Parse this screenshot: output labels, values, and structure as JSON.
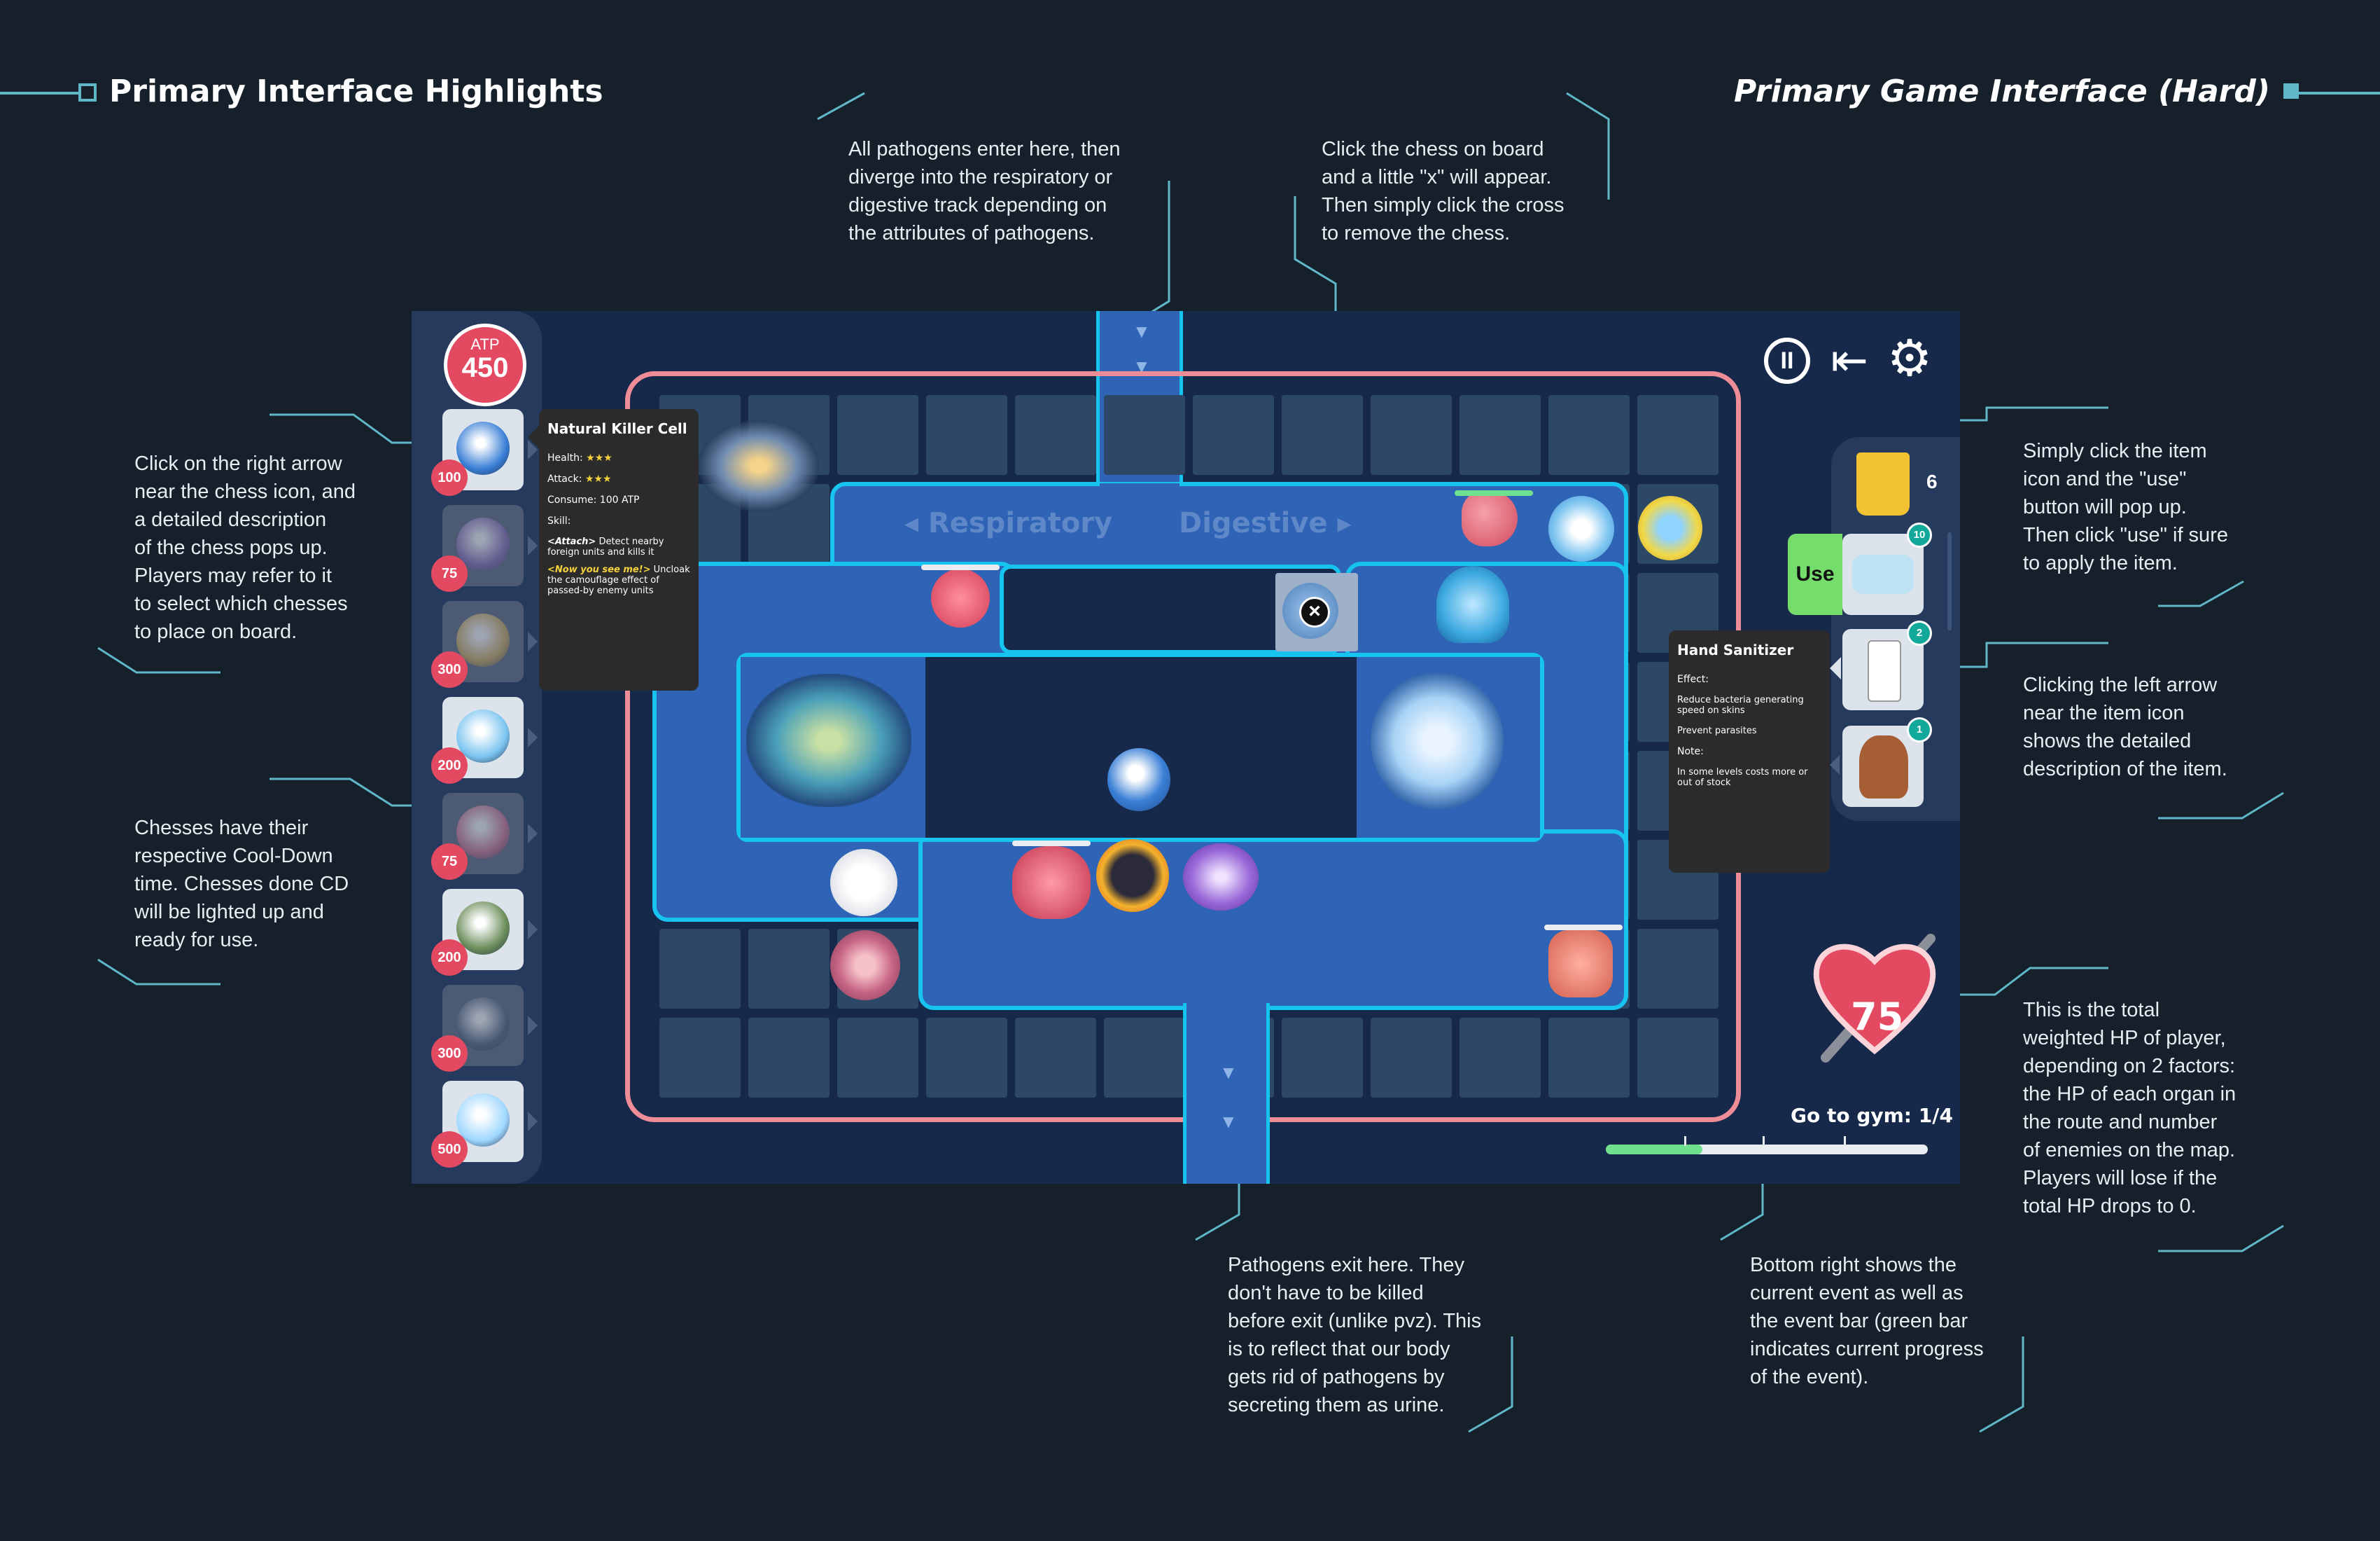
{
  "header": {
    "left_title": "Primary Interface Highlights",
    "right_title": "Primary Game Interface (Hard)"
  },
  "notes": {
    "entry": [
      "All pathogens enter here, then",
      "diverge into the respiratory or",
      "digestive track depending on",
      "the attributes of pathogens."
    ],
    "remove": [
      "Click the chess on board",
      "and a little \"x\" will appear.",
      "Then simply click the cross",
      "to remove the chess."
    ],
    "chess_desc": [
      "Click on the right arrow",
      "near the chess icon, and",
      "a detailed description",
      "of the chess pops up.",
      "Players may refer to it",
      "to select which chesses",
      "to place on board."
    ],
    "cooldown": [
      "Chesses have their",
      "respective Cool-Down",
      "time. Chesses done CD",
      "will be lighted up and",
      "ready for use."
    ],
    "use_item": [
      "Simply click the item",
      "icon and the \"use\"",
      "button will pop up.",
      "Then click \"use\" if sure",
      "to apply the item."
    ],
    "item_desc": [
      "Clicking the left arrow",
      "near the item icon",
      "shows the detailed",
      "description of the item."
    ],
    "hp": [
      "This is the total",
      "weighted HP of player,",
      "depending on 2 factors:",
      "the HP of each organ in",
      "the route and number",
      "of enemies on the map.",
      "Players will lose if the",
      "total HP drops to 0."
    ],
    "exit": [
      "Pathogens exit here. They",
      "don't have to be killed",
      "before exit (unlike pvz). This",
      "is to reflect that our body",
      "gets rid of pathogens by",
      "secreting them as urine."
    ],
    "event": [
      "Bottom right shows the",
      "current event as well as",
      "the event bar (green bar",
      "indicates current progress",
      "of the event)."
    ]
  },
  "game": {
    "atp": {
      "label": "ATP",
      "value": "450"
    },
    "chess_costs": [
      "100",
      "75",
      "300",
      "200",
      "75",
      "200",
      "300",
      "500"
    ],
    "routes": {
      "left": "◂ Respiratory",
      "right": "Digestive ▸"
    },
    "remove_symbol": "×",
    "controls": {
      "pause": "II",
      "exit": "⇤",
      "settings": "⚙"
    },
    "chess_tooltip": {
      "title": "Natural Killer Cell",
      "health_label": "Health:",
      "health_stars": "★★★",
      "attack_label": "Attack:",
      "attack_stars": "★★★",
      "consume": "Consume: 100 ATP",
      "skill_label": "Skill:",
      "skill1_name": "<Attach>",
      "skill1_desc": "Detect nearby foreign units and kills it",
      "skill2_name": "<Now you see me!>",
      "skill2_desc": "Uncloak the camouflage effect of passed-by enemy units"
    },
    "items": {
      "bag_count": "6",
      "use_label": "Use",
      "mask_count": "10",
      "sanitizer_count": "2",
      "glove_count": "1"
    },
    "item_tooltip": {
      "title": "Hand Sanitizer",
      "effect_label": "Effect:",
      "effect1": "Reduce bacteria generating speed on skins",
      "effect2": "Prevent parasites",
      "note_label": "Note:",
      "note": "In some levels costs more or out of stock"
    },
    "hp": "75",
    "event": {
      "label": "Go to gym: 1/4",
      "progress": 0.3
    }
  },
  "colors": {
    "background": "#16202b",
    "accent_cyan": "#5fb7c8",
    "board_outline": "#ee8d98",
    "path_border": "#17c4f0",
    "badge_red": "#e34a62",
    "use_green": "#74dd6c",
    "event_green": "#6fe08d"
  }
}
